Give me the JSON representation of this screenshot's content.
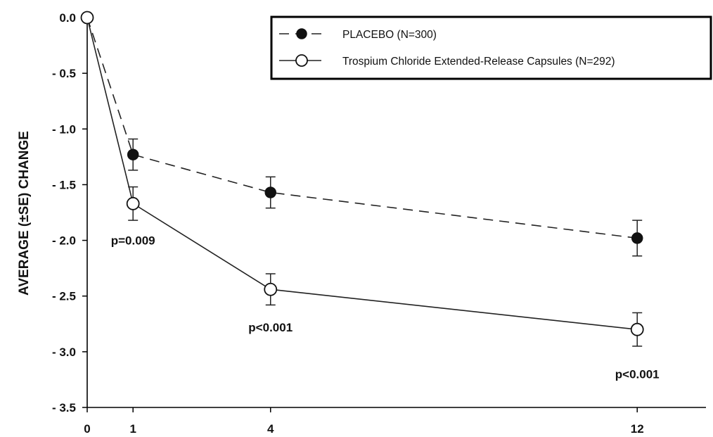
{
  "chart_data": {
    "type": "line",
    "ylabel": "AVERAGE (±SE) CHANGE",
    "xlabel": "",
    "title": "",
    "x_ticks": [
      0,
      1,
      4,
      12
    ],
    "y_ticks": [
      0.0,
      -0.5,
      -1.0,
      -1.5,
      -2.0,
      -2.5,
      -3.0,
      -3.5
    ],
    "y_tick_labels": [
      "0.0",
      "- 0.5",
      "- 1.0",
      "- 1.5",
      "- 2.0",
      "- 2.5",
      "- 3.0",
      "- 3.5"
    ],
    "ylim": [
      -3.5,
      0.0
    ],
    "xlim": [
      0,
      13.5
    ],
    "grid": false,
    "legend_position": "top-right",
    "series": [
      {
        "name": "PLACEBO (N=300)",
        "marker": "filled-circle",
        "line_style": "dashed",
        "x": [
          0,
          1,
          4,
          12
        ],
        "y": [
          0.0,
          -1.23,
          -1.57,
          -1.98
        ],
        "se": [
          0,
          0.14,
          0.14,
          0.16
        ]
      },
      {
        "name": "Trospium Chloride Extended-Release Capsules (N=292)",
        "marker": "open-circle",
        "line_style": "solid",
        "x": [
          0,
          1,
          4,
          12
        ],
        "y": [
          0.0,
          -1.67,
          -2.44,
          -2.8
        ],
        "se": [
          0,
          0.15,
          0.14,
          0.15
        ]
      }
    ],
    "annotations": [
      {
        "text": "p=0.009",
        "x": 1,
        "y": -2.0
      },
      {
        "text": "p<0.001",
        "x": 4,
        "y": -2.78
      },
      {
        "text": "p<0.001",
        "x": 12,
        "y": -3.2
      }
    ]
  }
}
